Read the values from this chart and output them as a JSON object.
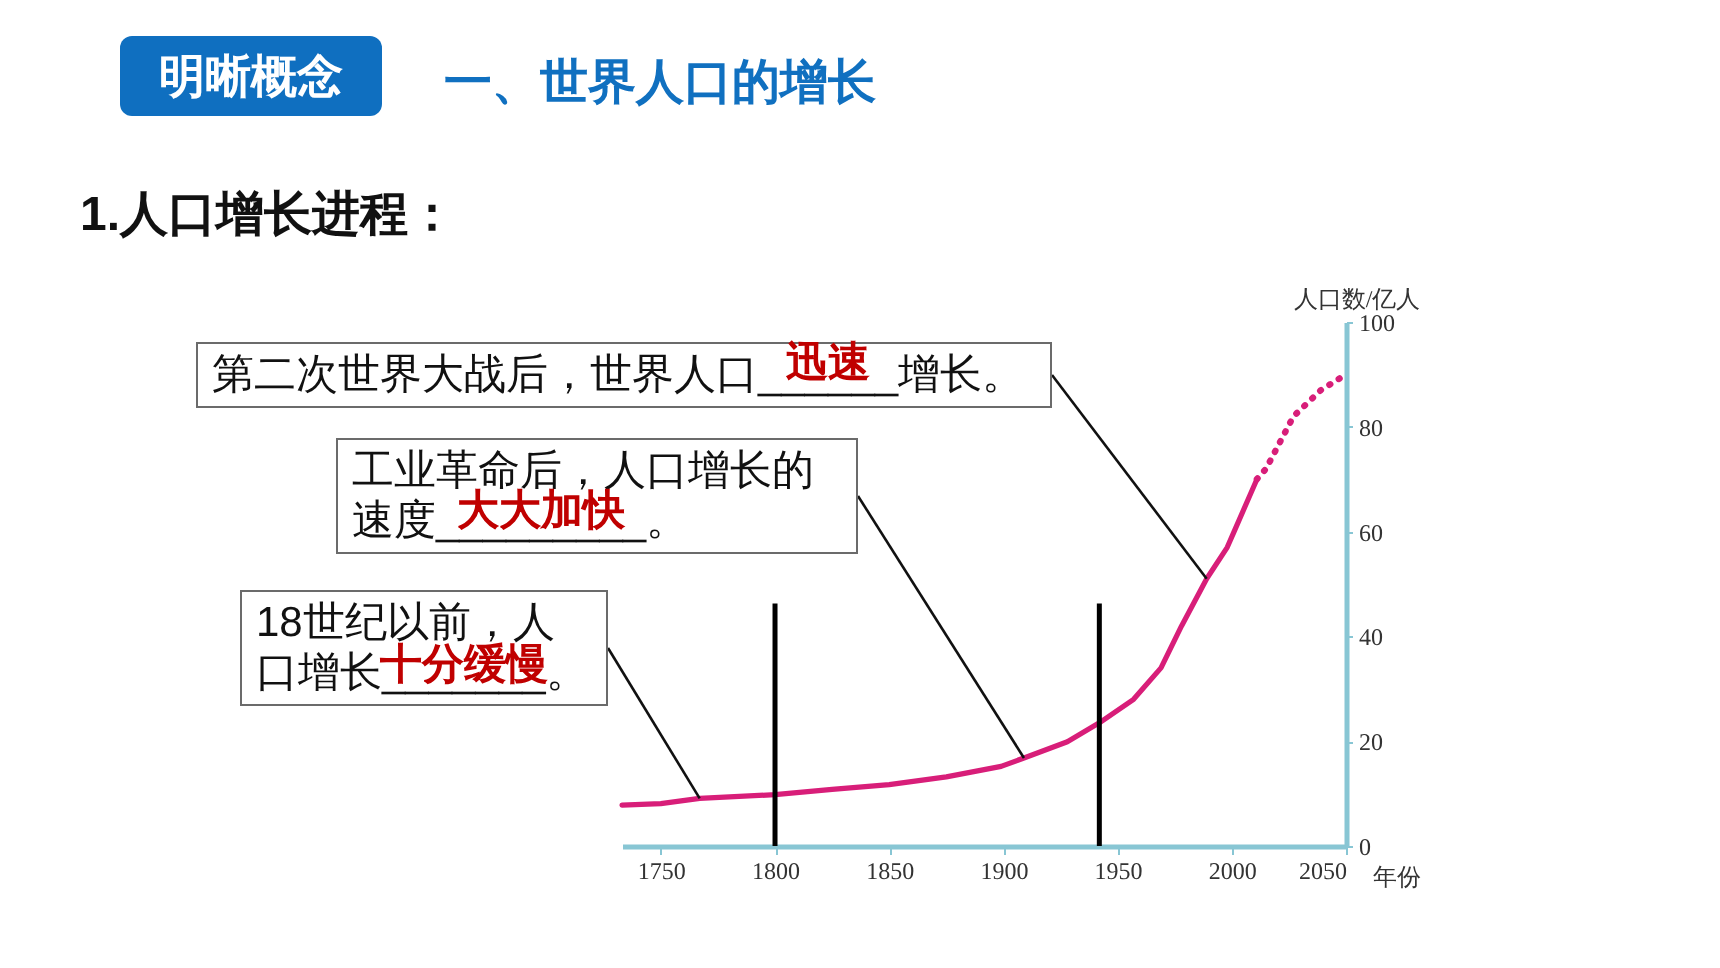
{
  "chart_data": {
    "type": "line",
    "title": "一、世界人口的增长",
    "subtitle": "1.人口增长进程：",
    "xlabel": "年份",
    "ylabel": "人口数/亿人",
    "series": [
      {
        "color": "#d81e79",
        "line_style": "solid",
        "x": [
          1733,
          1750,
          1767,
          1800,
          1825,
          1850,
          1875,
          1899,
          1909,
          1928,
          1942,
          1957,
          1969,
          1978,
          1989,
          1998,
          2001,
          2011
        ],
        "values": [
          7.8,
          8.1,
          9.1,
          9.8,
          10.8,
          11.7,
          13.2,
          15.2,
          16.8,
          19.9,
          23.5,
          28,
          34,
          42,
          51,
          57,
          60,
          70
        ]
      },
      {
        "color": "#d81e79",
        "line_style": "dotted",
        "x": [
          2011,
          2015,
          2027,
          2039,
          2050
        ],
        "values": [
          70,
          72,
          82,
          87,
          90
        ]
      }
    ],
    "xlim": [
      1733,
      2050
    ],
    "xticks": [
      1750,
      1800,
      1850,
      1900,
      1950,
      2000,
      2050
    ],
    "ylim": [
      0,
      100
    ],
    "yticks": [
      0,
      20,
      40,
      60,
      80,
      100
    ],
    "grid": false,
    "ref_lines": [
      {
        "axis": "x",
        "value": 1800,
        "color": "#000000"
      },
      {
        "axis": "x",
        "value": 1942,
        "color": "#000000"
      }
    ],
    "annotations": [
      "明晰概念",
      {
        "text": "第二次世界大战后，世界人口______增长。",
        "x": 1989,
        "y": 51
      },
      "迅速",
      {
        "text": "工业革命后，人口增长的速度_________。",
        "x": 1909,
        "y": 16.8
      },
      "大大加快",
      {
        "text": "18世纪以前，人口增长_______。",
        "x": 1767,
        "y": 9.1
      },
      "十分缓慢"
    ]
  }
}
